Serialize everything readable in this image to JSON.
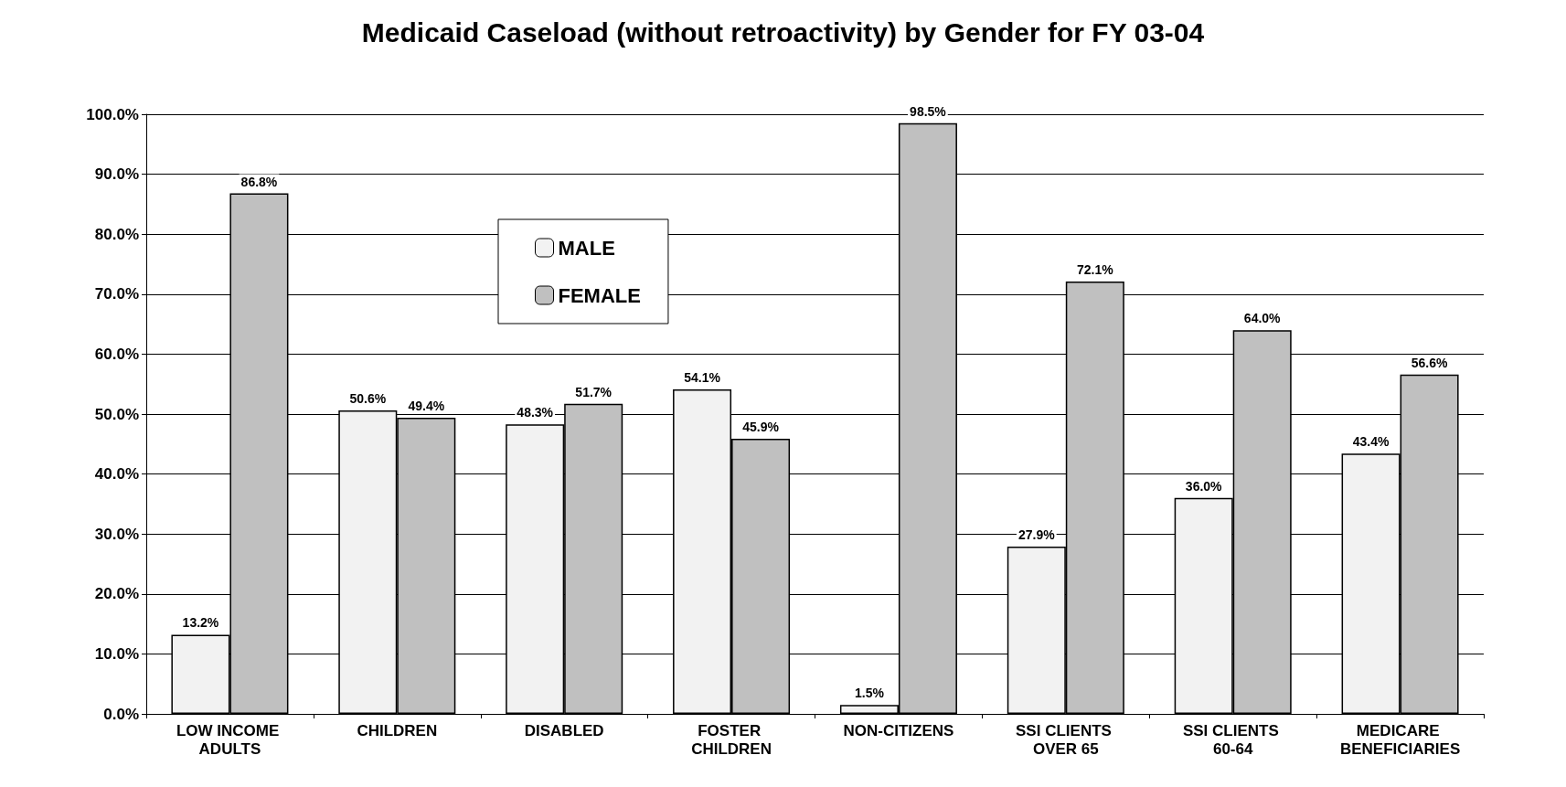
{
  "chart_data": {
    "type": "bar",
    "title": "Medicaid Caseload (without retroactivity) by Gender for FY 03-04",
    "categories": [
      "LOW INCOME ADULTS",
      "CHILDREN",
      "DISABLED",
      "FOSTER CHILDREN",
      "NON-CITIZENS",
      "SSI CLIENTS OVER 65",
      "SSI CLIENTS 60-64",
      "MEDICARE BENEFICIARIES"
    ],
    "series": [
      {
        "name": "MALE",
        "color": "#f2f2f2",
        "values": [
          13.2,
          50.6,
          48.3,
          54.1,
          1.5,
          27.9,
          36.0,
          43.4
        ],
        "value_labels": [
          "13.2%",
          "50.6%",
          "48.3%",
          "54.1%",
          "1.5%",
          "27.9%",
          "36.0%",
          "43.4%"
        ]
      },
      {
        "name": "FEMALE",
        "color": "#c0c0c0",
        "values": [
          86.8,
          49.4,
          51.7,
          45.9,
          98.5,
          72.1,
          64.0,
          56.6
        ],
        "value_labels": [
          "86.8%",
          "49.4%",
          "51.7%",
          "45.9%",
          "98.5%",
          "72.1%",
          "64.0%",
          "56.6%"
        ]
      }
    ],
    "ylim": [
      0,
      100
    ],
    "yticks": [
      {
        "value": 0,
        "label": "0.0%"
      },
      {
        "value": 10,
        "label": "10.0%"
      },
      {
        "value": 20,
        "label": "20.0%"
      },
      {
        "value": 30,
        "label": "30.0%"
      },
      {
        "value": 40,
        "label": "40.0%"
      },
      {
        "value": 50,
        "label": "50.0%"
      },
      {
        "value": 60,
        "label": "60.0%"
      },
      {
        "value": 70,
        "label": "70.0%"
      },
      {
        "value": 80,
        "label": "80.0%"
      },
      {
        "value": 90,
        "label": "90.0%"
      },
      {
        "value": 100,
        "label": "100.0%"
      }
    ],
    "grid": "y",
    "legend": "top"
  }
}
